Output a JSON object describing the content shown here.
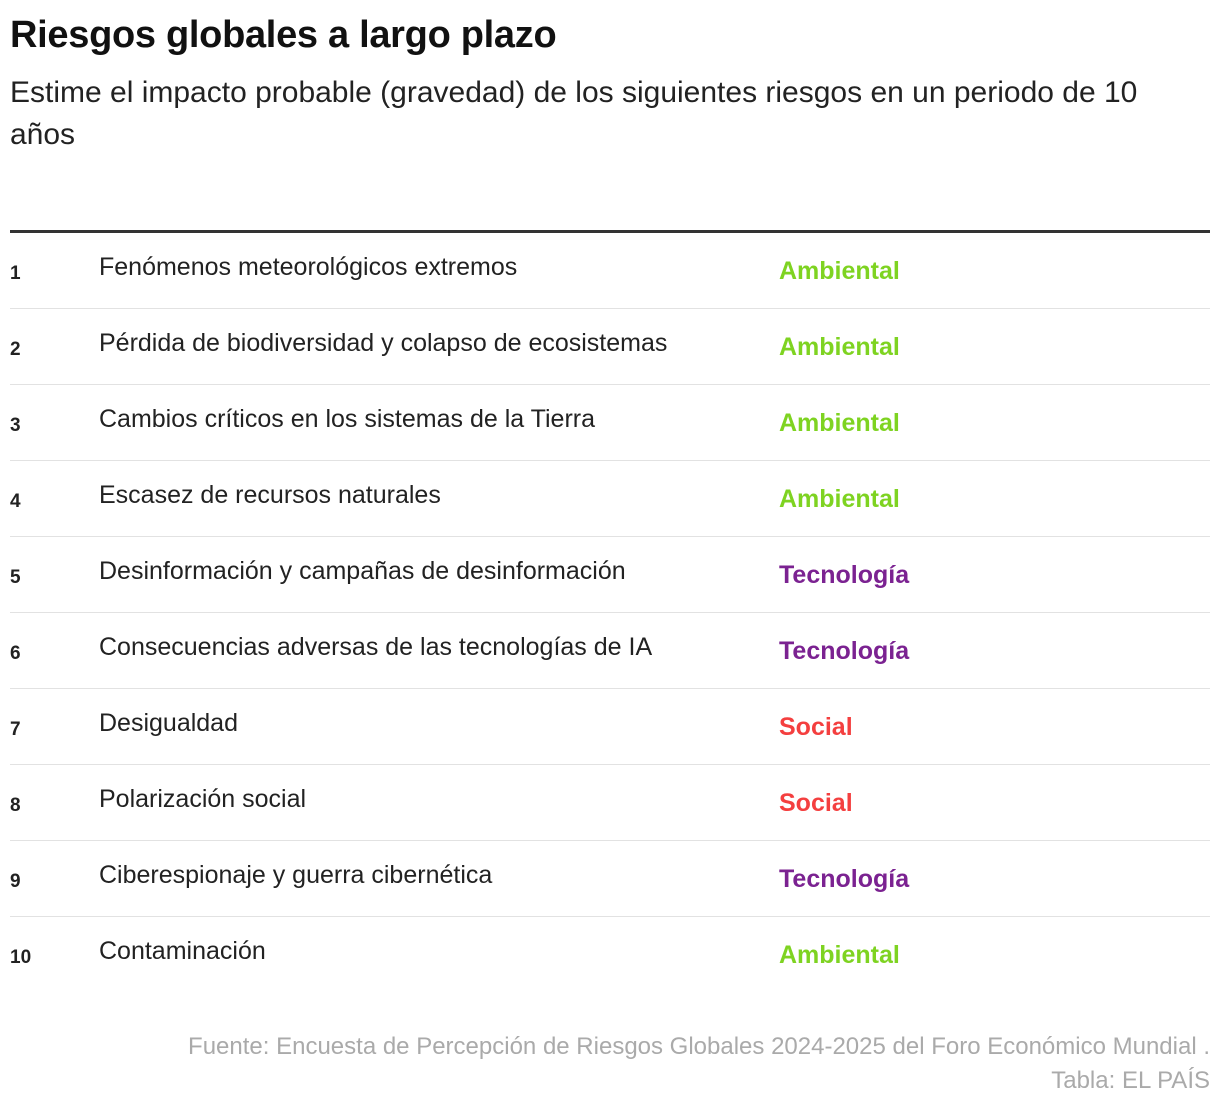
{
  "title": "Riesgos globales a largo plazo",
  "subtitle": "Estime el impacto probable (gravedad) de los siguientes riesgos en un periodo de 10 años",
  "colors": {
    "Ambiental": "#7ed321",
    "Tecnología": "#7b2291",
    "Social": "#f43f3f"
  },
  "chart_data": {
    "type": "table",
    "columns": [
      "",
      "",
      ""
    ],
    "rows": [
      {
        "rank": "1",
        "risk": "Fenómenos meteorológicos extremos",
        "category": "Ambiental"
      },
      {
        "rank": "2",
        "risk": "Pérdida de biodiversidad y colapso de ecosistemas",
        "category": "Ambiental"
      },
      {
        "rank": "3",
        "risk": "Cambios críticos en los sistemas de la Tierra",
        "category": "Ambiental"
      },
      {
        "rank": "4",
        "risk": "Escasez de recursos naturales",
        "category": "Ambiental"
      },
      {
        "rank": "5",
        "risk": "Desinformación y campañas de desinformación",
        "category": "Tecnología"
      },
      {
        "rank": "6",
        "risk": "Consecuencias adversas de las tecnologías de IA",
        "category": "Tecnología"
      },
      {
        "rank": "7",
        "risk": "Desigualdad",
        "category": "Social"
      },
      {
        "rank": "8",
        "risk": "Polarización social",
        "category": "Social"
      },
      {
        "rank": "9",
        "risk": "Ciberespionaje y guerra cibernética",
        "category": "Tecnología"
      },
      {
        "rank": "10",
        "risk": "Contaminación",
        "category": "Ambiental"
      }
    ]
  },
  "footer": {
    "source": "Fuente: Encuesta de Percepción de Riesgos Globales 2024-2025 del Foro Económico Mundial .",
    "credit": "Tabla: EL PAÍS"
  }
}
